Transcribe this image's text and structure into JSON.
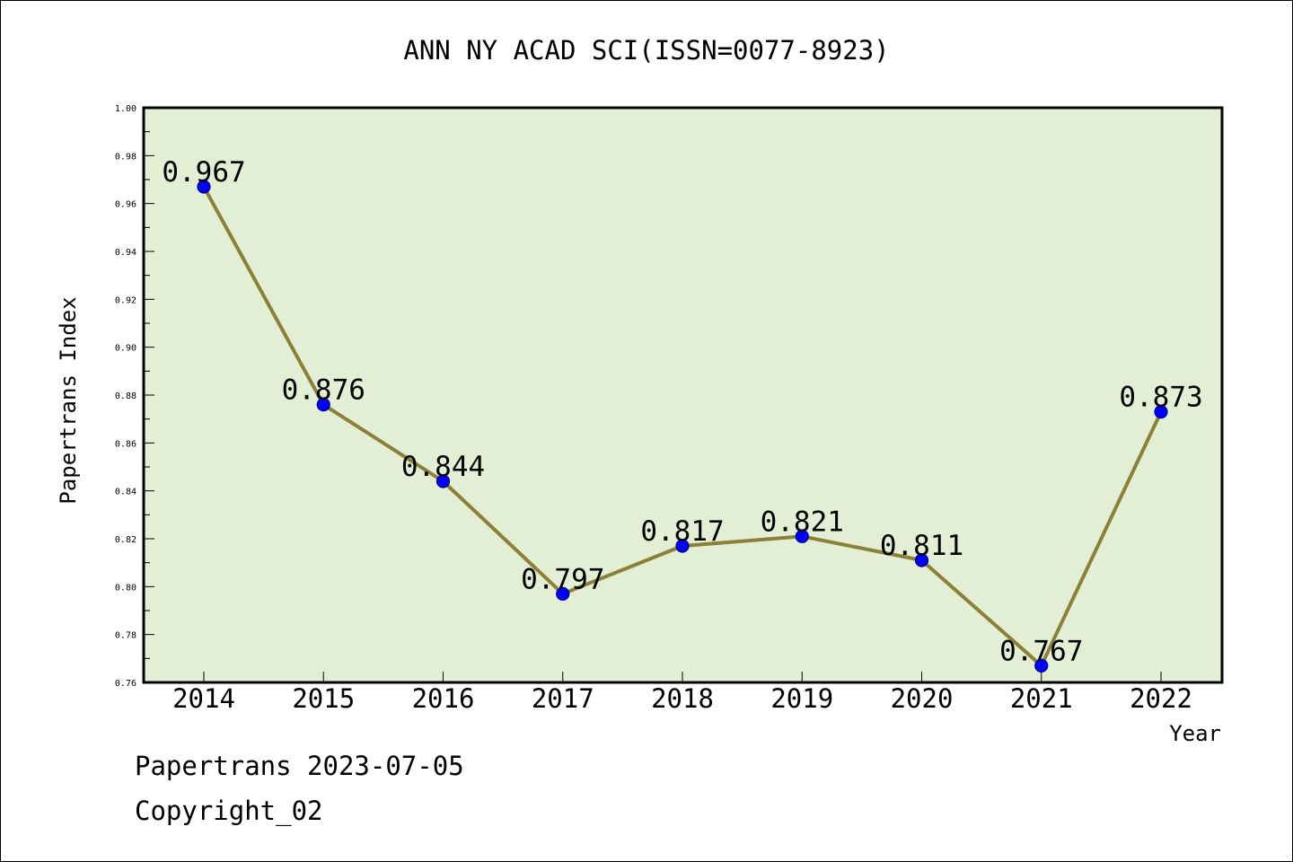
{
  "chart_data": {
    "type": "line",
    "title": "ANN NY ACAD SCI(ISSN=0077-8923)",
    "xlabel": "Year",
    "ylabel": "Papertrans Index",
    "categories": [
      "2014",
      "2015",
      "2016",
      "2017",
      "2018",
      "2019",
      "2020",
      "2021",
      "2022"
    ],
    "values": [
      0.967,
      0.876,
      0.844,
      0.797,
      0.817,
      0.821,
      0.811,
      0.767,
      0.873
    ],
    "data_labels": [
      "0.967",
      "0.876",
      "0.844",
      "0.797",
      "0.817",
      "0.821",
      "0.811",
      "0.767",
      "0.873"
    ],
    "ylim": [
      0.76,
      1.0
    ],
    "yticks": [
      "0.76",
      "0.78",
      "0.80",
      "0.82",
      "0.84",
      "0.86",
      "0.88",
      "0.90",
      "0.92",
      "0.94",
      "0.96",
      "0.98",
      "1.00"
    ],
    "grid": false,
    "legend": false,
    "colors": {
      "plot_background": "#e2efd4",
      "line": "#8c8038",
      "marker": "#0000ff",
      "marker_edge": "#000080",
      "axis": "#000000"
    }
  },
  "footer": {
    "line1": "Papertrans 2023-07-05",
    "line2": "Copyright_02"
  }
}
